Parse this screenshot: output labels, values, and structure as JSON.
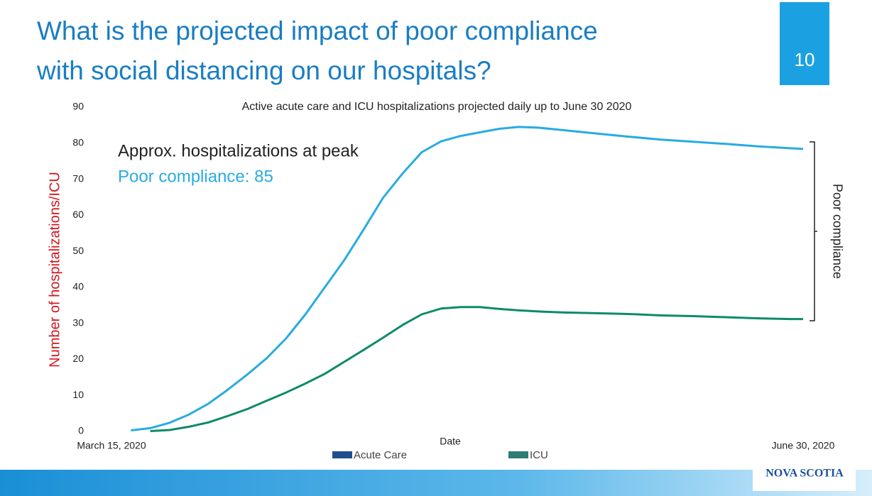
{
  "slide": {
    "title_lines": [
      "What is the projected impact of poor compliance",
      "with social distancing on our hospitals?"
    ],
    "page_number": "10",
    "logo": "NOVA SCOTIA"
  },
  "chart_data": {
    "type": "line",
    "title": "Active acute care and ICU hospitalizations projected daily up to June 30 2020",
    "x_label": "Date",
    "y_label": "Number of hospitalizations/ICU",
    "annotations": [
      "Approx. hospitalizations at peak",
      "Poor compliance: 85",
      "Poor compliance"
    ],
    "xlim": [
      0,
      107
    ],
    "xticks": [
      {
        "value": 0,
        "label": "March 15, 2020"
      },
      {
        "value": 107,
        "label": "June 30, 2020"
      }
    ],
    "ylim": [
      0,
      90
    ],
    "yticks": [
      0,
      10,
      20,
      30,
      40,
      50,
      60,
      70,
      80,
      90
    ],
    "grid": false,
    "x": [
      3,
      6,
      9,
      12,
      15,
      18,
      21,
      24,
      27,
      30,
      33,
      36,
      39,
      42,
      45,
      48,
      51,
      54,
      57,
      60,
      63,
      66,
      70,
      75,
      80,
      85,
      90,
      95,
      100,
      105,
      107
    ],
    "series": [
      {
        "name": "Acute Care",
        "color": "#29abe2",
        "legend_color": "#1f4e8c",
        "values": [
          0.3,
          0.9,
          2.4,
          4.7,
          7.7,
          11.6,
          15.8,
          20.3,
          25.8,
          32.5,
          40,
          47.5,
          56,
          64.8,
          71.5,
          77.5,
          80.5,
          82,
          83,
          84,
          84.5,
          84.3,
          83.6,
          82.7,
          81.8,
          81,
          80.4,
          79.8,
          79.1,
          78.6,
          78.4
        ]
      },
      {
        "name": "ICU",
        "color": "#0e8a6a",
        "legend_color": "#2e7d74",
        "values": [
          null,
          0.1,
          0.4,
          1.3,
          2.5,
          4.3,
          6.2,
          8.5,
          10.8,
          13.3,
          16,
          19.3,
          22.6,
          26,
          29.5,
          32.5,
          34.1,
          34.5,
          34.5,
          34,
          33.6,
          33.3,
          33,
          32.8,
          32.6,
          32.2,
          32,
          31.7,
          31.4,
          31.2,
          31.2
        ]
      }
    ]
  }
}
